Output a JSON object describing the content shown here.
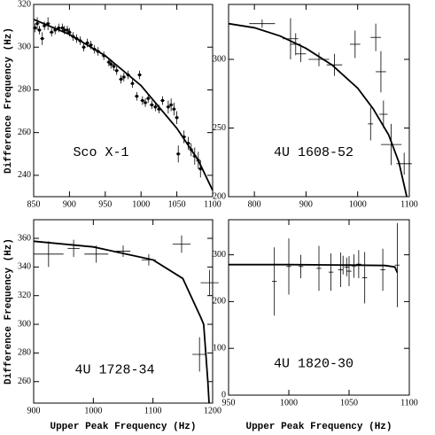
{
  "chart_data": [
    {
      "type": "scatter",
      "annotation": "Sco X-1",
      "ylabel": "Difference Frequency (Hz)",
      "xlim": [
        850,
        1100
      ],
      "xticks": [
        850,
        900,
        950,
        1000,
        1050,
        1100
      ],
      "ylim": [
        230,
        320
      ],
      "yticks": [
        240,
        260,
        280,
        300,
        320
      ],
      "points": {
        "x": [
          852,
          855,
          858,
          862,
          865,
          870,
          875,
          880,
          885,
          890,
          893,
          897,
          900,
          905,
          910,
          915,
          920,
          925,
          930,
          935,
          940,
          948,
          955,
          958,
          962,
          966,
          972,
          976,
          982,
          988,
          994,
          998,
          1002,
          1006,
          1010,
          1015,
          1020,
          1025,
          1030,
          1038,
          1042,
          1046,
          1050,
          1052,
          1060,
          1066,
          1070,
          1075,
          1080,
          1083
        ],
        "y": [
          309,
          311,
          308,
          304,
          310,
          311,
          307,
          308,
          309,
          309,
          308,
          308,
          307,
          305,
          304,
          303,
          300,
          302,
          301,
          299,
          298,
          296,
          293,
          292,
          291,
          289,
          285,
          286,
          287,
          283,
          277,
          287,
          275,
          274,
          276,
          273,
          272,
          271,
          275,
          272,
          273,
          271,
          267,
          250,
          258,
          255,
          252,
          249,
          247,
          243
        ],
        "xerr": [
          3,
          3,
          3,
          3,
          3,
          3,
          3,
          3,
          3,
          3,
          3,
          3,
          3,
          3,
          3,
          3,
          3,
          3,
          3,
          3,
          3,
          3,
          3,
          3,
          3,
          3,
          3,
          3,
          3,
          3,
          3,
          3,
          3,
          3,
          3,
          3,
          3,
          3,
          3,
          3,
          3,
          3,
          3,
          3,
          3,
          3,
          3,
          3,
          3,
          3
        ],
        "yerr": [
          2,
          3,
          2,
          3,
          2,
          3,
          2,
          2,
          2,
          2,
          2,
          2,
          2,
          2,
          2,
          2,
          2,
          2,
          2,
          2,
          2,
          2,
          2,
          2,
          2,
          2,
          2,
          2,
          2,
          2,
          2,
          2,
          2,
          2,
          2,
          2,
          2,
          2,
          2,
          3,
          3,
          3,
          3,
          4,
          3,
          3,
          3,
          4,
          4,
          4
        ]
      },
      "curve": {
        "x": [
          850,
          900,
          950,
          1000,
          1050,
          1080,
          1100
        ],
        "y": [
          313,
          306,
          296,
          282,
          262,
          247,
          233
        ]
      }
    },
    {
      "type": "scatter",
      "annotation": "4U 1608-52",
      "xlim": [
        750,
        1100
      ],
      "xticks": [
        800,
        900,
        1000,
        1100
      ],
      "ylim": [
        200,
        340
      ],
      "yticks": [
        200,
        250,
        300
      ],
      "points": {
        "x": [
          815,
          870,
          880,
          890,
          925,
          955,
          995,
          1025,
          1035,
          1045,
          1050,
          1065,
          1090
        ],
        "y": [
          326,
          315,
          311,
          304,
          300,
          296,
          311,
          253,
          316,
          291,
          260,
          238,
          224
        ],
        "xerr": [
          25,
          15,
          10,
          10,
          20,
          15,
          10,
          5,
          10,
          10,
          8,
          20,
          15
        ],
        "yerr": [
          3,
          15,
          8,
          6,
          5,
          8,
          10,
          12,
          10,
          15,
          10,
          15,
          8
        ]
      },
      "curve": {
        "x": [
          750,
          800,
          850,
          900,
          950,
          1000,
          1030,
          1060,
          1080,
          1095
        ],
        "y": [
          326,
          323,
          317,
          308,
          296,
          279,
          264,
          245,
          225,
          200
        ]
      }
    },
    {
      "type": "scatter",
      "annotation": "4U 1728-34",
      "ylabel": "Difference Frequency (Hz)",
      "xlabel": "Upper Peak Frequency (Hz)",
      "xlim": [
        900,
        1200
      ],
      "xticks": [
        900,
        1000,
        1100,
        1200
      ],
      "ylim": [
        245,
        373
      ],
      "yticks": [
        260,
        280,
        300,
        320,
        340,
        360
      ],
      "points": {
        "x": [
          925,
          967,
          1005,
          1050,
          1093,
          1148,
          1178,
          1195
        ],
        "y": [
          349,
          353,
          349,
          351,
          345,
          356,
          279,
          329
        ],
        "xerr": [
          25,
          10,
          20,
          12,
          12,
          15,
          12,
          15
        ],
        "yerr": [
          9,
          6,
          6,
          4,
          4,
          6,
          12,
          9
        ]
      },
      "curve": {
        "x": [
          900,
          1000,
          1100,
          1150,
          1180,
          1185,
          1192,
          1194
        ],
        "y": [
          358,
          354,
          345,
          332,
          305,
          300,
          260,
          245
        ]
      }
    },
    {
      "type": "scatter",
      "annotation": "4U 1820-30",
      "xlabel": "Upper Peak Frequency (Hz)",
      "xlim": [
        950,
        1100
      ],
      "xticks": [
        950,
        1000,
        1050,
        1100
      ],
      "ylim": [
        0,
        375
      ],
      "yticks": [
        0,
        100,
        200,
        300
      ],
      "points": {
        "x": [
          988,
          1000,
          1010,
          1025,
          1035,
          1043,
          1045,
          1048,
          1050,
          1054,
          1058,
          1063,
          1078,
          1090
        ],
        "y": [
          243,
          275,
          275,
          271,
          263,
          268,
          278,
          274,
          265,
          276,
          280,
          251,
          268,
          278
        ],
        "xerr": [
          2,
          2,
          2,
          2,
          2,
          2,
          2,
          2,
          2,
          2,
          2,
          2,
          2,
          2
        ],
        "yerr": [
          73,
          60,
          25,
          48,
          40,
          37,
          20,
          20,
          32,
          25,
          30,
          55,
          45,
          90
        ]
      },
      "curve": {
        "x": [
          950,
          1000,
          1050,
          1080,
          1088,
          1090
        ],
        "y": [
          279,
          279,
          278,
          277,
          274,
          262
        ]
      }
    }
  ]
}
